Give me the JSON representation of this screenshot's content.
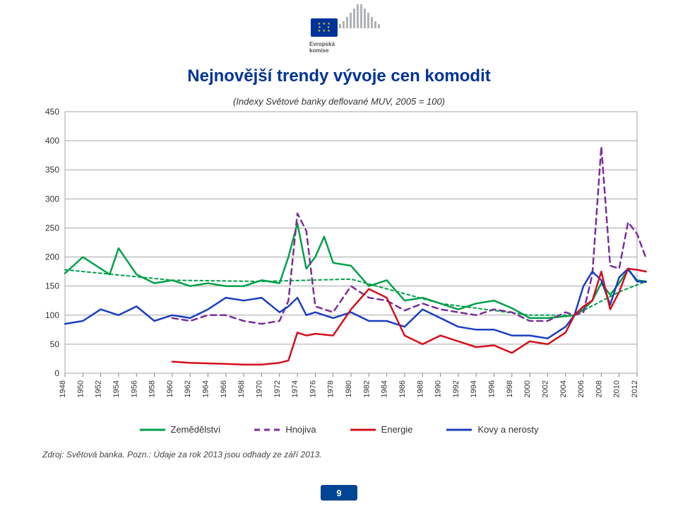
{
  "logo": {
    "line1": "Evropská",
    "line2": "komise",
    "bar_heights": [
      6,
      10,
      16,
      22,
      28,
      34,
      34,
      28,
      22,
      16,
      10,
      6
    ],
    "bar_color": "#b0b3b6",
    "flag_bg": "#003399",
    "star_color": "#ffcc00"
  },
  "title": {
    "text": "Nejnovější trendy vývoje cen komodit",
    "color": "#003399",
    "fontsize": 24
  },
  "subtitle": {
    "text": "(Indexy Světové banky deflované MUV, 2005 = 100)",
    "fontsize": 13
  },
  "chart": {
    "type": "line",
    "bg": "#ffffff",
    "grid_color": "#a6a6a6",
    "axis_color": "#808080",
    "axis_fontsize": 12,
    "x_label_fontsize": 11,
    "xlim": [
      1948,
      2012
    ],
    "ylim": [
      0,
      450
    ],
    "ytick_step": 50,
    "x_ticks": [
      1948,
      1950,
      1952,
      1954,
      1956,
      1958,
      1960,
      1962,
      1964,
      1966,
      1968,
      1970,
      1972,
      1974,
      1976,
      1978,
      1980,
      1982,
      1984,
      1986,
      1988,
      1990,
      1992,
      1994,
      1996,
      1998,
      2000,
      2002,
      2004,
      2006,
      2008,
      2010,
      2012
    ],
    "series": {
      "agriculture": {
        "label": "Zemědělství",
        "color": "#00a04a",
        "width": 2.5,
        "dash": null,
        "years": [
          1948,
          1950,
          1952,
          1953,
          1954,
          1956,
          1958,
          1960,
          1962,
          1964,
          1966,
          1968,
          1970,
          1972,
          1973,
          1974,
          1975,
          1976,
          1977,
          1978,
          1980,
          1982,
          1984,
          1986,
          1988,
          1990,
          1992,
          1994,
          1996,
          1998,
          2000,
          2002,
          2004,
          2005,
          2006,
          2007,
          2008,
          2009,
          2010,
          2011,
          2012,
          2013
        ],
        "values": [
          172,
          200,
          180,
          170,
          215,
          170,
          155,
          160,
          150,
          155,
          150,
          150,
          160,
          155,
          200,
          258,
          180,
          200,
          235,
          190,
          185,
          150,
          160,
          125,
          130,
          120,
          110,
          120,
          125,
          112,
          95,
          95,
          98,
          100,
          110,
          125,
          155,
          135,
          155,
          178,
          160,
          158
        ]
      },
      "agri_trend": {
        "label": "agriculture-trend",
        "color": "#00a04a",
        "width": 2,
        "dash": "4,4",
        "years": [
          1948,
          1960,
          1970,
          1980,
          1990,
          2000,
          2005,
          2010,
          2013
        ],
        "values": [
          178,
          160,
          158,
          162,
          120,
          100,
          100,
          140,
          158
        ]
      },
      "fertilizer": {
        "label": "Hnojiva",
        "color": "#7a2e9a",
        "width": 2.5,
        "dash": "8,6",
        "years": [
          1960,
          1962,
          1964,
          1966,
          1968,
          1970,
          1972,
          1973,
          1974,
          1975,
          1976,
          1978,
          1980,
          1982,
          1984,
          1986,
          1988,
          1990,
          1992,
          1994,
          1996,
          1998,
          2000,
          2002,
          2004,
          2005,
          2006,
          2007,
          2008,
          2009,
          2010,
          2011,
          2012,
          2013
        ],
        "values": [
          95,
          90,
          100,
          100,
          90,
          85,
          90,
          125,
          275,
          245,
          115,
          105,
          150,
          130,
          125,
          108,
          120,
          110,
          105,
          100,
          110,
          105,
          90,
          90,
          105,
          100,
          105,
          170,
          390,
          185,
          180,
          260,
          240,
          198
        ]
      },
      "energy": {
        "label": "Energie",
        "color": "#d30f1d",
        "width": 2.5,
        "dash": null,
        "years": [
          1960,
          1962,
          1964,
          1966,
          1968,
          1970,
          1972,
          1973,
          1974,
          1975,
          1976,
          1978,
          1980,
          1982,
          1984,
          1986,
          1988,
          1990,
          1992,
          1994,
          1996,
          1998,
          2000,
          2002,
          2004,
          2005,
          2006,
          2007,
          2008,
          2009,
          2010,
          2011,
          2012,
          2013
        ],
        "values": [
          20,
          18,
          17,
          16,
          15,
          15,
          18,
          22,
          70,
          65,
          68,
          65,
          110,
          145,
          130,
          65,
          50,
          65,
          55,
          45,
          48,
          35,
          55,
          50,
          70,
          100,
          115,
          125,
          175,
          110,
          140,
          180,
          178,
          175
        ]
      },
      "metals": {
        "label": "Kovy a nerosty",
        "color": "#1b3fbf",
        "width": 2.5,
        "dash": null,
        "years": [
          1948,
          1950,
          1952,
          1954,
          1956,
          1958,
          1960,
          1962,
          1964,
          1966,
          1968,
          1970,
          1972,
          1973,
          1974,
          1975,
          1976,
          1978,
          1980,
          1982,
          1984,
          1986,
          1988,
          1990,
          1992,
          1994,
          1996,
          1998,
          2000,
          2002,
          2004,
          2005,
          2006,
          2007,
          2008,
          2009,
          2010,
          2011,
          2012,
          2013
        ],
        "values": [
          85,
          90,
          110,
          100,
          115,
          90,
          100,
          95,
          110,
          130,
          125,
          130,
          105,
          115,
          130,
          100,
          105,
          95,
          105,
          90,
          90,
          80,
          110,
          95,
          80,
          75,
          75,
          65,
          65,
          60,
          80,
          100,
          150,
          175,
          160,
          118,
          165,
          180,
          158,
          157
        ]
      }
    }
  },
  "legend": {
    "items": [
      {
        "key": "agriculture",
        "label": "Zemědělství",
        "color": "#00a04a",
        "dash": null
      },
      {
        "key": "fertilizer",
        "label": "Hnojiva",
        "color": "#7a2e9a",
        "dash": "8,6"
      },
      {
        "key": "energy",
        "label": "Energie",
        "color": "#d30f1d",
        "dash": null
      },
      {
        "key": "metals",
        "label": "Kovy a nerosty",
        "color": "#1b3fbf",
        "dash": null
      }
    ],
    "fontsize": 13
  },
  "source": {
    "prefix": "Zdroj: Světová banka. Pozn.:",
    "note": " Údaje za rok 2013 jsou odhady ze září 2013.",
    "fontsize": 12
  },
  "page_number": "9",
  "pagenum_bg": "#004494"
}
